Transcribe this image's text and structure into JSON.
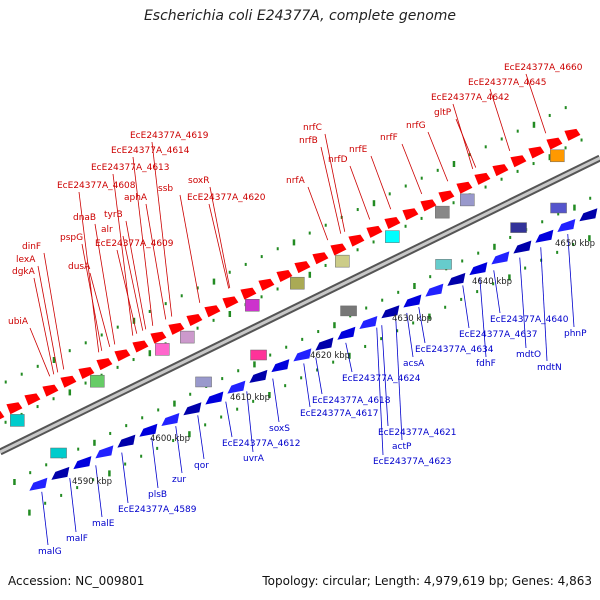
{
  "title": "Escherichia coli E24377A, complete genome",
  "footer": {
    "accession": "Accession: NC_009801",
    "summary": "Topology: circular; Length: 4,979,619 bp; Genes: 4,863"
  },
  "colors": {
    "forward_label": "#cc0000",
    "reverse_label": "#0000cc",
    "backbone": "#888888",
    "tick": "#228b22"
  },
  "scale_labels": [
    "4590 kbp",
    "4600 kbp",
    "4610 kbp",
    "4620 kbp",
    "4630 kbp",
    "4640 kbp",
    "4650 kbp"
  ],
  "forward_genes": [
    "ubiA",
    "dgkA",
    "lexA",
    "dinF",
    "pspG",
    "dusA",
    "dnaB",
    "alr",
    "tyrB",
    "EcE24377A_4609",
    "aphA",
    "EcE24377A_4608",
    "ssb",
    "EcE24377A_4613",
    "EcE24377A_4614",
    "EcE24377A_4619",
    "soxR",
    "EcE24377A_4620",
    "nrfA",
    "nrfD",
    "nrfB",
    "nrfC",
    "nrfE",
    "nrfF",
    "nrfG",
    "gltP",
    "EcE24377A_4642",
    "EcE24377A_4645",
    "EcE24377A_4660"
  ],
  "reverse_genes": [
    "malG",
    "malF",
    "malE",
    "EcE24377A_4589",
    "plsB",
    "zur",
    "qor",
    "uvrA",
    "EcE24377A_4612",
    "soxS",
    "EcE24377A_4617",
    "EcE24377A_4618",
    "EcE24377A_4624",
    "EcE24377A_4621",
    "actP",
    "EcE24377A_4623",
    "acsA",
    "EcE24377A_4634",
    "fdhF",
    "EcE24377A_4637",
    "mdtO",
    "EcE24377A_4640",
    "mdtN",
    "phnP"
  ]
}
